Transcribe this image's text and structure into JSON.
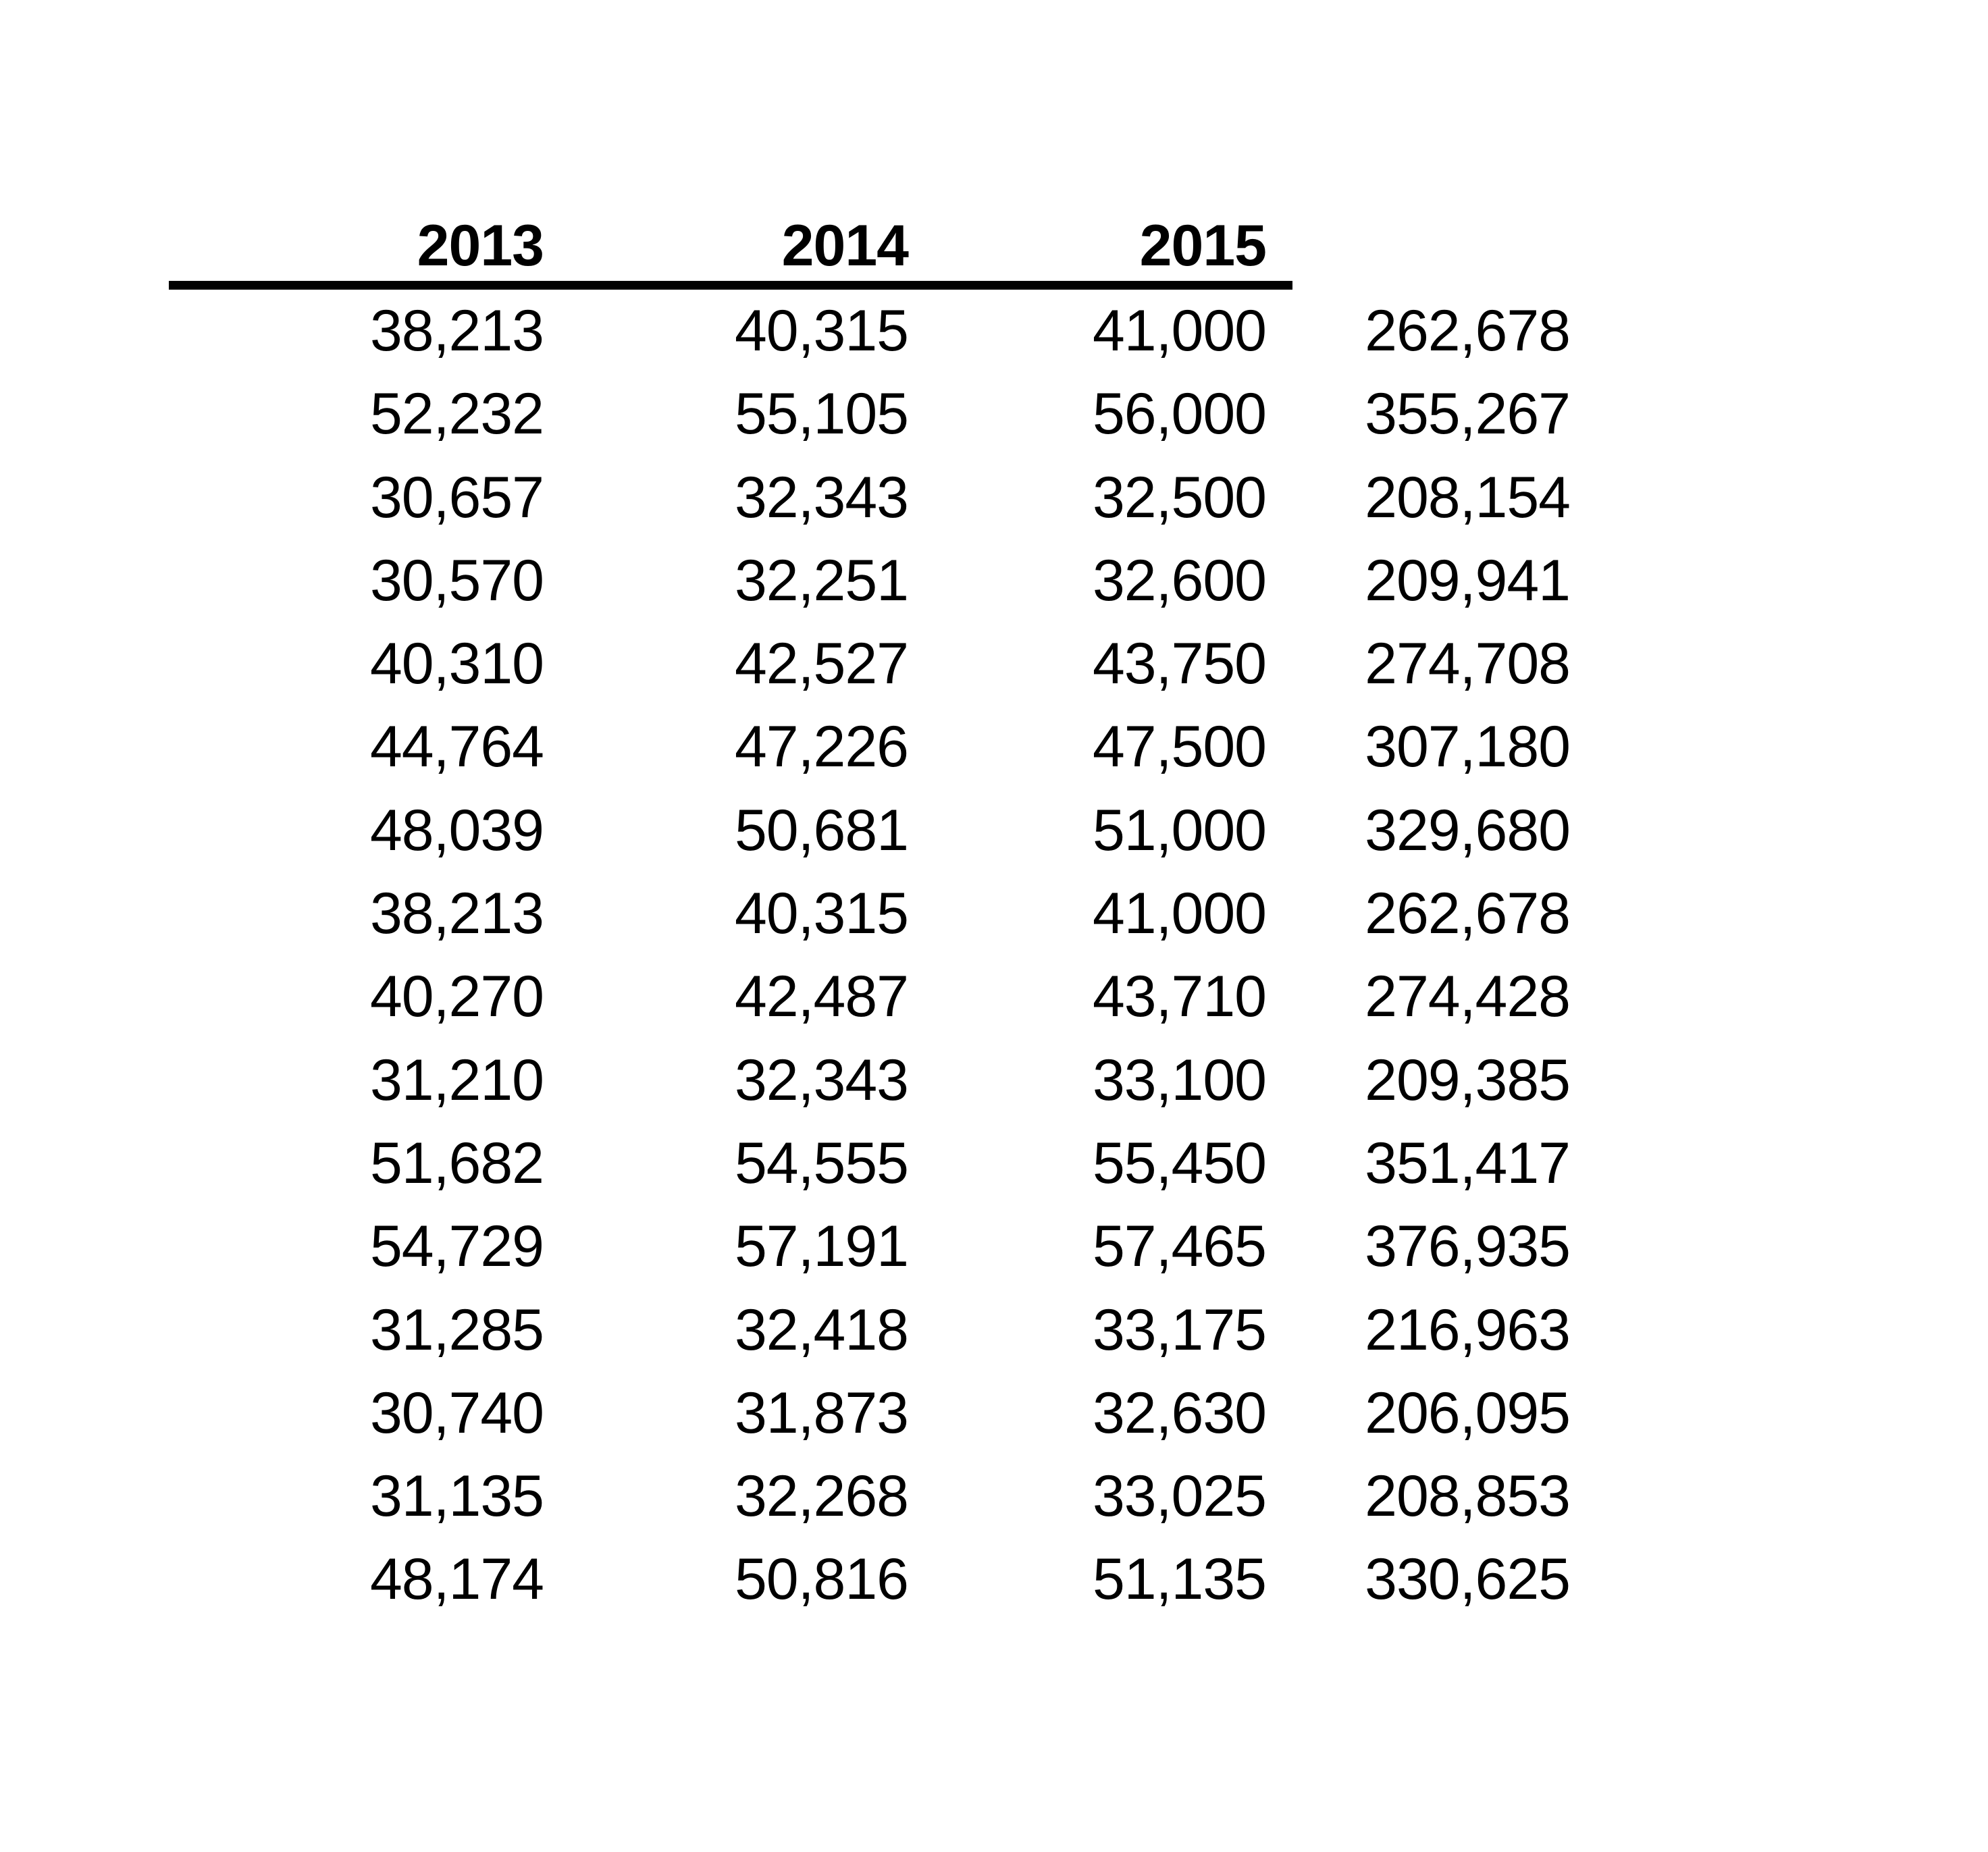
{
  "page": {
    "background": "#ffffff",
    "text_color": "#000000",
    "rule_color": "#000000"
  },
  "table": {
    "header_labels": [
      "2013",
      "2014",
      "2015"
    ],
    "fourth_column_header": "",
    "rows": [
      [
        "38,213",
        "40,315",
        "41,000",
        "262,678"
      ],
      [
        "52,232",
        "55,105",
        "56,000",
        "355,267"
      ],
      [
        "30,657",
        "32,343",
        "32,500",
        "208,154"
      ],
      [
        "30,570",
        "32,251",
        "32,600",
        "209,941"
      ],
      [
        "40,310",
        "42,527",
        "43,750",
        "274,708"
      ],
      [
        "44,764",
        "47,226",
        "47,500",
        "307,180"
      ],
      [
        "48,039",
        "50,681",
        "51,000",
        "329,680"
      ],
      [
        "38,213",
        "40,315",
        "41,000",
        "262,678"
      ],
      [
        "40,270",
        "42,487",
        "43,710",
        "274,428"
      ],
      [
        "31,210",
        "32,343",
        "33,100",
        "209,385"
      ],
      [
        "51,682",
        "54,555",
        "55,450",
        "351,417"
      ],
      [
        "54,729",
        "57,191",
        "57,465",
        "376,935"
      ],
      [
        "31,285",
        "32,418",
        "33,175",
        "216,963"
      ],
      [
        "30,740",
        "31,873",
        "32,630",
        "206,095"
      ],
      [
        "31,135",
        "32,268",
        "33,025",
        "208,853"
      ],
      [
        "48,174",
        "50,816",
        "51,135",
        "330,625"
      ]
    ]
  }
}
